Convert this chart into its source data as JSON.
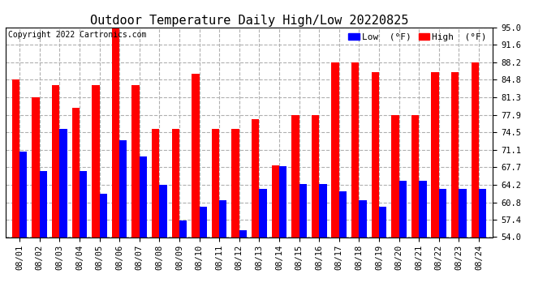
{
  "title": "Outdoor Temperature Daily High/Low 20220825",
  "copyright": "Copyright 2022 Cartronics.com",
  "dates": [
    "08/01",
    "08/02",
    "08/03",
    "08/04",
    "08/05",
    "08/06",
    "08/07",
    "08/08",
    "08/09",
    "08/10",
    "08/11",
    "08/12",
    "08/13",
    "08/14",
    "08/15",
    "08/16",
    "08/17",
    "08/18",
    "08/19",
    "08/20",
    "08/21",
    "08/22",
    "08/23",
    "08/24"
  ],
  "highs": [
    84.8,
    81.3,
    83.7,
    79.3,
    83.7,
    95.0,
    83.7,
    75.2,
    75.2,
    86.0,
    75.2,
    75.2,
    77.0,
    68.0,
    77.9,
    77.9,
    88.2,
    88.2,
    86.2,
    77.9,
    77.9,
    86.2,
    86.2,
    88.2
  ],
  "lows": [
    70.7,
    66.9,
    75.2,
    66.9,
    62.4,
    73.0,
    69.8,
    64.2,
    57.2,
    59.9,
    61.2,
    55.4,
    63.5,
    67.8,
    64.4,
    64.4,
    63.0,
    61.2,
    59.9,
    65.0,
    65.0,
    63.5,
    63.5,
    63.5
  ],
  "high_color": "#ff0000",
  "low_color": "#0000ff",
  "bg_color": "#ffffff",
  "grid_color": "#b0b0b0",
  "ylim_min": 54.0,
  "ylim_max": 95.0,
  "yticks": [
    54.0,
    57.4,
    60.8,
    64.2,
    67.7,
    71.1,
    74.5,
    77.9,
    81.3,
    84.8,
    88.2,
    91.6,
    95.0
  ],
  "title_fontsize": 11,
  "copyright_fontsize": 7,
  "legend_fontsize": 8,
  "tick_fontsize": 7.5,
  "bar_width": 0.38
}
